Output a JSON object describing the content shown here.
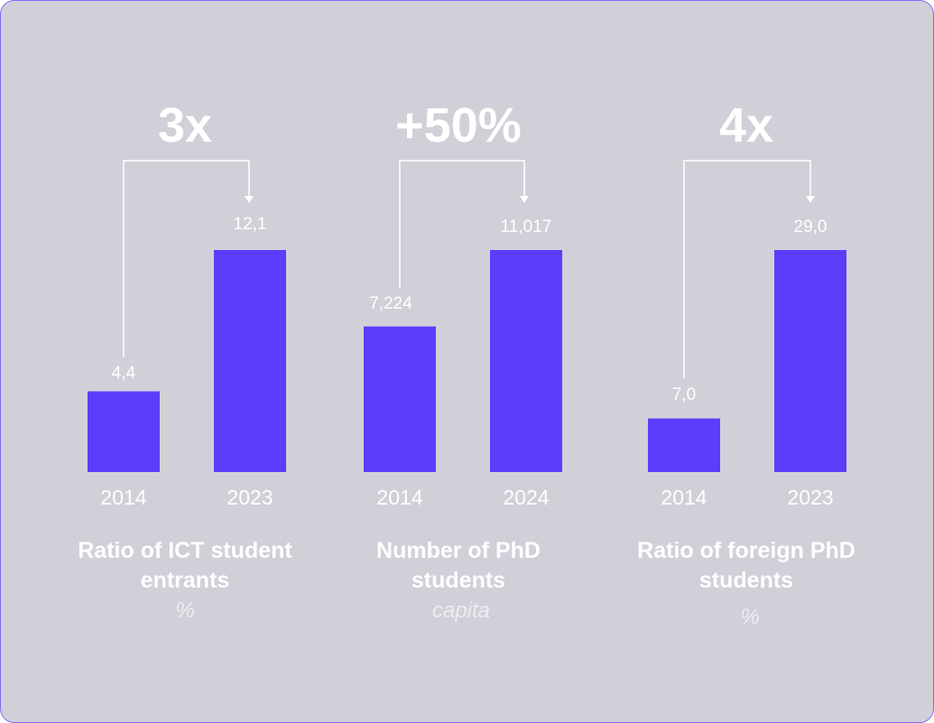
{
  "chart_data": [
    {
      "type": "bar",
      "title": [
        "Ratio of ICT student",
        "entrants"
      ],
      "unit": "%",
      "change_label": "3x",
      "categories": [
        "2014",
        "2023"
      ],
      "values": [
        4.4,
        12.1
      ],
      "value_labels": [
        "4,4",
        "12,1"
      ],
      "bar_color": "#5b3dfb"
    },
    {
      "type": "bar",
      "title": [
        "Number of PhD",
        "students"
      ],
      "unit": "capita",
      "change_label": "+50%",
      "categories": [
        "2014",
        "2024"
      ],
      "values": [
        7224,
        11017
      ],
      "value_labels": [
        "7,224",
        "11,017"
      ],
      "bar_color": "#5b3dfb"
    },
    {
      "type": "bar",
      "title": [
        "Ratio of foreign PhD",
        "students"
      ],
      "unit": "%",
      "change_label": "4x",
      "categories": [
        "2014",
        "2023"
      ],
      "values": [
        7.0,
        29.0
      ],
      "value_labels": [
        "7,0",
        "29,0"
      ],
      "bar_color": "#5b3dfb"
    }
  ],
  "colors": {
    "background": "#d1d0d9",
    "border": "#7b6cf0",
    "text": "#ffffff",
    "bar": "#5b3dfb"
  }
}
